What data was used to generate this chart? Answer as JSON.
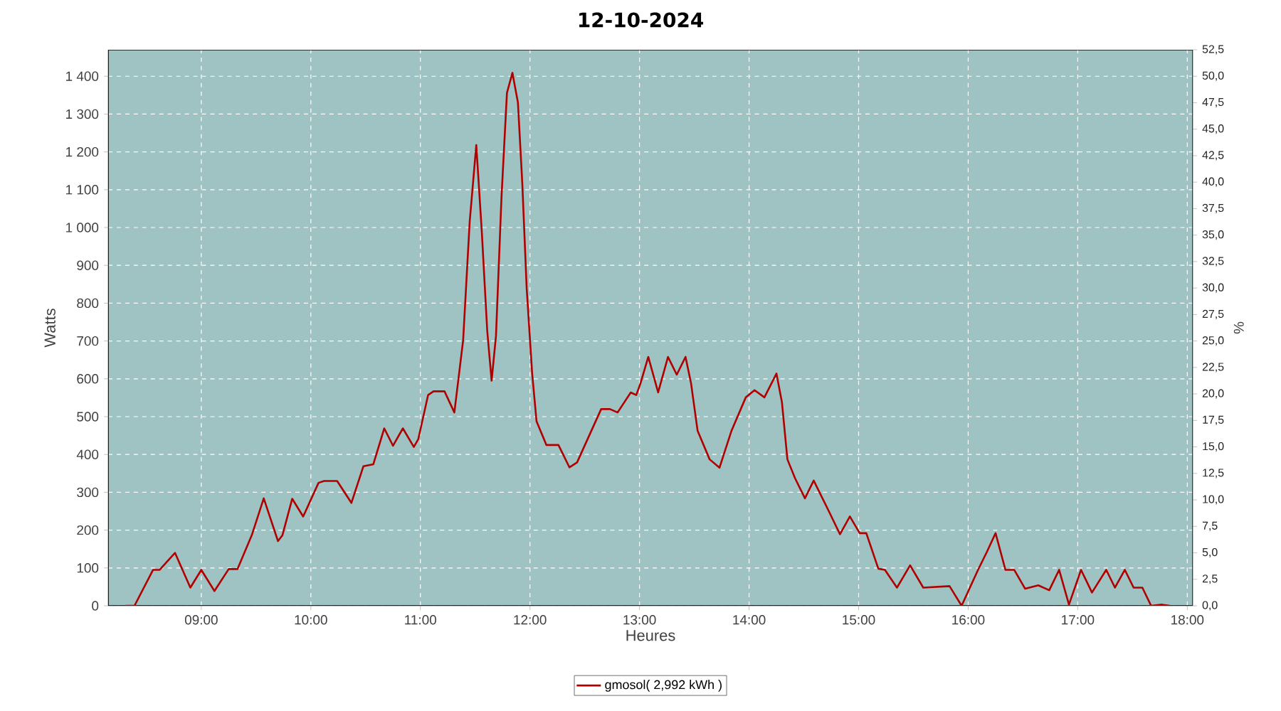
{
  "chart_data": {
    "type": "line",
    "title": "12-10-2024",
    "xlabel": "Heures",
    "ylabel": "Watts",
    "y2label": "%",
    "xlim": [
      8.15,
      18.05
    ],
    "xticks": [
      {
        "value": 9,
        "label": "09:00"
      },
      {
        "value": 10,
        "label": "10:00"
      },
      {
        "value": 11,
        "label": "11:00"
      },
      {
        "value": 12,
        "label": "12:00"
      },
      {
        "value": 13,
        "label": "13:00"
      },
      {
        "value": 14,
        "label": "14:00"
      },
      {
        "value": 15,
        "label": "15:00"
      },
      {
        "value": 16,
        "label": "16:00"
      },
      {
        "value": 17,
        "label": "17:00"
      },
      {
        "value": 18,
        "label": "18:00"
      }
    ],
    "ylim": [
      0,
      1470
    ],
    "yticks": [
      0,
      100,
      200,
      300,
      400,
      500,
      600,
      700,
      800,
      900,
      {
        "value": 1000,
        "label": "1 000"
      },
      {
        "value": 1100,
        "label": "1 100"
      },
      {
        "value": 1200,
        "label": "1 200"
      },
      {
        "value": 1300,
        "label": "1 300"
      },
      {
        "value": 1400,
        "label": "1 400"
      }
    ],
    "y2lim": [
      0,
      52.5
    ],
    "y2ticks": [
      {
        "value": 0,
        "label": "0,0"
      },
      {
        "value": 2.5,
        "label": "2,5"
      },
      {
        "value": 5,
        "label": "5,0"
      },
      {
        "value": 7.5,
        "label": "7,5"
      },
      {
        "value": 10,
        "label": "10,0"
      },
      {
        "value": 12.5,
        "label": "12,5"
      },
      {
        "value": 15,
        "label": "15,0"
      },
      {
        "value": 17.5,
        "label": "17,5"
      },
      {
        "value": 20,
        "label": "20,0"
      },
      {
        "value": 22.5,
        "label": "22,5"
      },
      {
        "value": 25,
        "label": "25,0"
      },
      {
        "value": 27.5,
        "label": "27,5"
      },
      {
        "value": 30,
        "label": "30,0"
      },
      {
        "value": 32.5,
        "label": "32,5"
      },
      {
        "value": 35,
        "label": "35,0"
      },
      {
        "value": 37.5,
        "label": "37,5"
      },
      {
        "value": 40,
        "label": "40,0"
      },
      {
        "value": 42.5,
        "label": "42,5"
      },
      {
        "value": 45,
        "label": "45,0"
      },
      {
        "value": 47.5,
        "label": "47,5"
      },
      {
        "value": 50,
        "label": "50,0"
      },
      {
        "value": 52.5,
        "label": "52,5"
      }
    ],
    "grid": true,
    "legend": "bottom",
    "marker": "none",
    "line_style": "solid",
    "series": [
      {
        "name": "gmosol( 2,992 kWh )",
        "color": "#b00000",
        "x": [
          8.31,
          8.39,
          8.56,
          8.62,
          8.76,
          8.9,
          9.0,
          9.12,
          9.25,
          9.33,
          9.46,
          9.57,
          9.7,
          9.74,
          9.83,
          9.93,
          10.07,
          10.12,
          10.24,
          10.37,
          10.48,
          10.57,
          10.67,
          10.75,
          10.84,
          10.94,
          10.98,
          11.07,
          11.12,
          11.22,
          11.31,
          11.39,
          11.45,
          11.51,
          11.56,
          11.61,
          11.65,
          11.69,
          11.74,
          11.79,
          11.84,
          11.89,
          11.93,
          11.97,
          12.02,
          12.06,
          12.15,
          12.26,
          12.36,
          12.43,
          12.65,
          12.73,
          12.8,
          12.92,
          12.97,
          13.01,
          13.08,
          13.17,
          13.26,
          13.34,
          13.42,
          13.47,
          13.53,
          13.64,
          13.73,
          13.84,
          13.97,
          14.05,
          14.14,
          14.25,
          14.3,
          14.35,
          14.42,
          14.51,
          14.59,
          14.74,
          14.83,
          14.92,
          15.01,
          15.07,
          15.18,
          15.24,
          15.35,
          15.47,
          15.59,
          15.83,
          15.94,
          16.09,
          16.17,
          16.25,
          16.34,
          16.42,
          16.52,
          16.64,
          16.74,
          16.83,
          16.92,
          17.03,
          17.13,
          17.26,
          17.34,
          17.43,
          17.51,
          17.59,
          17.67,
          17.77,
          17.84
        ],
        "values": [
          0,
          0,
          95,
          95,
          140,
          48,
          95,
          39,
          97,
          97,
          186,
          284,
          171,
          186,
          283,
          236,
          325,
          330,
          330,
          272,
          369,
          374,
          469,
          423,
          469,
          420,
          440,
          557,
          567,
          567,
          511,
          702,
          1016,
          1218,
          991,
          727,
          595,
          714,
          1079,
          1356,
          1409,
          1331,
          1117,
          840,
          614,
          488,
          425,
          425,
          366,
          379,
          520,
          520,
          511,
          564,
          557,
          589,
          658,
          564,
          658,
          611,
          658,
          589,
          463,
          387,
          365,
          463,
          551,
          570,
          551,
          614,
          538,
          387,
          337,
          284,
          331,
          243,
          189,
          236,
          192,
          192,
          98,
          95,
          48,
          107,
          48,
          52,
          0,
          95,
          142,
          192,
          95,
          95,
          45,
          54,
          41,
          95,
          3,
          95,
          35,
          95,
          48,
          95,
          48,
          48,
          0,
          3,
          0
        ]
      }
    ]
  }
}
